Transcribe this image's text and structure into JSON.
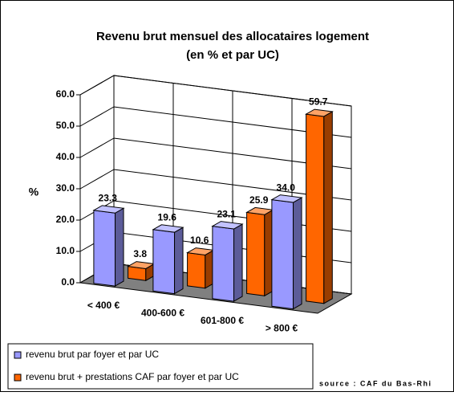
{
  "chart_data": {
    "type": "bar3d",
    "title": "Revenu brut mensuel des allocataires logement",
    "subtitle": "(en % et par UC)",
    "y_label": "%",
    "categories": [
      "< 400 €",
      "400-600 €",
      "601-800 €",
      "> 800 €"
    ],
    "series": [
      {
        "name": "revenu brut par foyer et par UC",
        "color": "#9999ff",
        "values": [
          23.3,
          19.6,
          23.1,
          34.0
        ],
        "value_labels": [
          "23.3",
          "19.6",
          "23.1",
          "34.0"
        ]
      },
      {
        "name": "revenu brut + prestations CAF par foyer et par UC",
        "color": "#ff6600",
        "values": [
          3.8,
          10.6,
          25.9,
          59.7
        ]
      }
    ],
    "ylim": [
      0,
      60
    ],
    "yticks": [
      {
        "value": 0,
        "label": "0.0"
      },
      {
        "value": 10,
        "label": "10.0"
      },
      {
        "value": 20,
        "label": "20.0"
      },
      {
        "value": 30,
        "label": "30.0"
      },
      {
        "value": 40,
        "label": "40.0"
      },
      {
        "value": 50,
        "label": "50.0"
      },
      {
        "value": 60,
        "label": "60.0"
      }
    ],
    "grid": true,
    "source": "source : CAF du Bas-Rhi"
  }
}
